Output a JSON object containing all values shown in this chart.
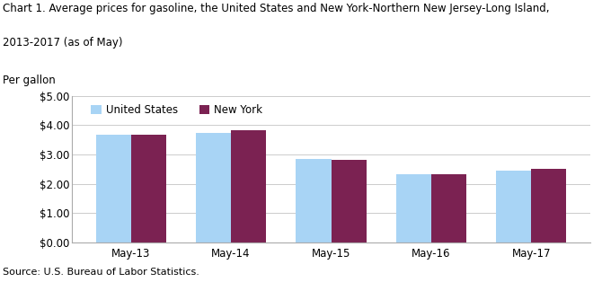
{
  "title_line1": "Chart 1. Average prices for gasoline, the United States and New York-Northern New Jersey-Long Island,",
  "title_line2": "2013-2017 (as of May)",
  "ylabel": "Per gallon",
  "source": "Source: U.S. Bureau of Labor Statistics.",
  "categories": [
    "May-13",
    "May-14",
    "May-15",
    "May-16",
    "May-17"
  ],
  "us_values": [
    3.67,
    3.73,
    2.86,
    2.33,
    2.46
  ],
  "ny_values": [
    3.67,
    3.84,
    2.81,
    2.33,
    2.52
  ],
  "us_color": "#A8D4F5",
  "ny_color": "#7B2252",
  "us_label": "United States",
  "ny_label": "New York",
  "ylim": [
    0,
    5.0
  ],
  "yticks": [
    0.0,
    1.0,
    2.0,
    3.0,
    4.0,
    5.0
  ],
  "bar_width": 0.35,
  "background_color": "#FFFFFF",
  "grid_color": "#CCCCCC",
  "title_fontsize": 8.5,
  "tick_fontsize": 8.5,
  "legend_fontsize": 8.5,
  "ylabel_fontsize": 8.5,
  "source_fontsize": 8
}
